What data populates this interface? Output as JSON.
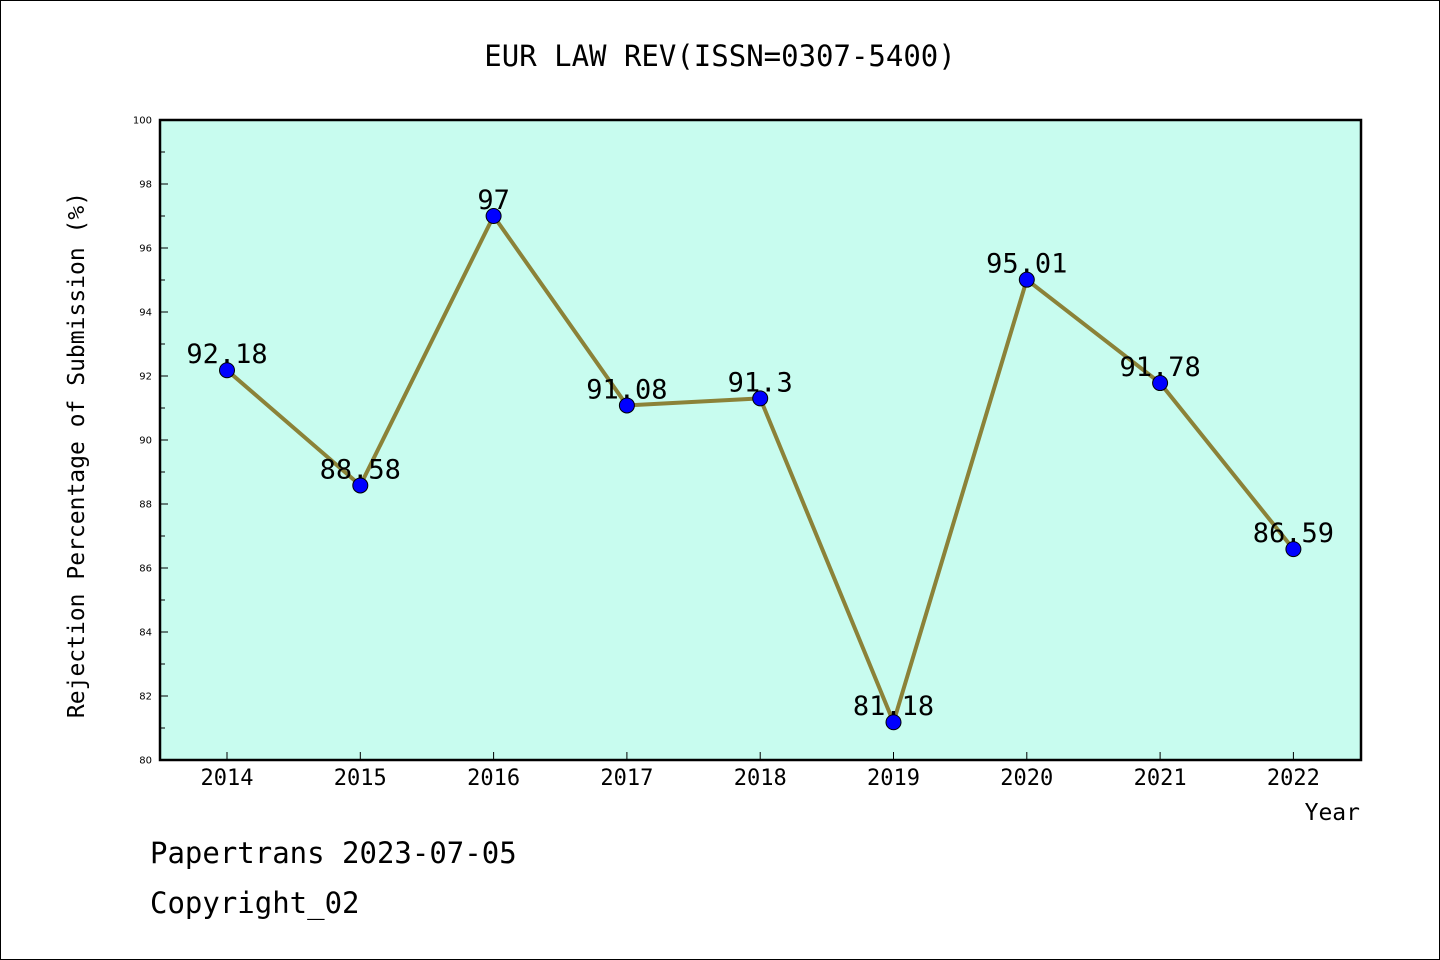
{
  "chart_data": {
    "type": "line",
    "title": "EUR LAW REV(ISSN=0307-5400)",
    "xlabel": "Year",
    "ylabel": "Rejection Percentage of Submission (%)",
    "categories": [
      "2014",
      "2015",
      "2016",
      "2017",
      "2018",
      "2019",
      "2020",
      "2021",
      "2022"
    ],
    "values": [
      92.18,
      88.58,
      97,
      91.08,
      91.3,
      81.18,
      95.01,
      91.78,
      86.59
    ],
    "data_labels": [
      "92.18",
      "88.58",
      "97",
      "91.08",
      "91.3",
      "81.18",
      "95.01",
      "91.78",
      "86.59"
    ],
    "ylim": [
      80,
      100
    ],
    "y_ticks": [
      "80",
      "82",
      "84",
      "86",
      "88",
      "90",
      "92",
      "94",
      "96",
      "98",
      "100"
    ],
    "grid": false,
    "legend": "none",
    "colors": {
      "plot_background": "#c8fcef",
      "line": "#8b8238",
      "marker": "#0000ff"
    }
  },
  "footer": {
    "line1": "Papertrans 2023-07-05",
    "line2": "Copyright_02"
  }
}
